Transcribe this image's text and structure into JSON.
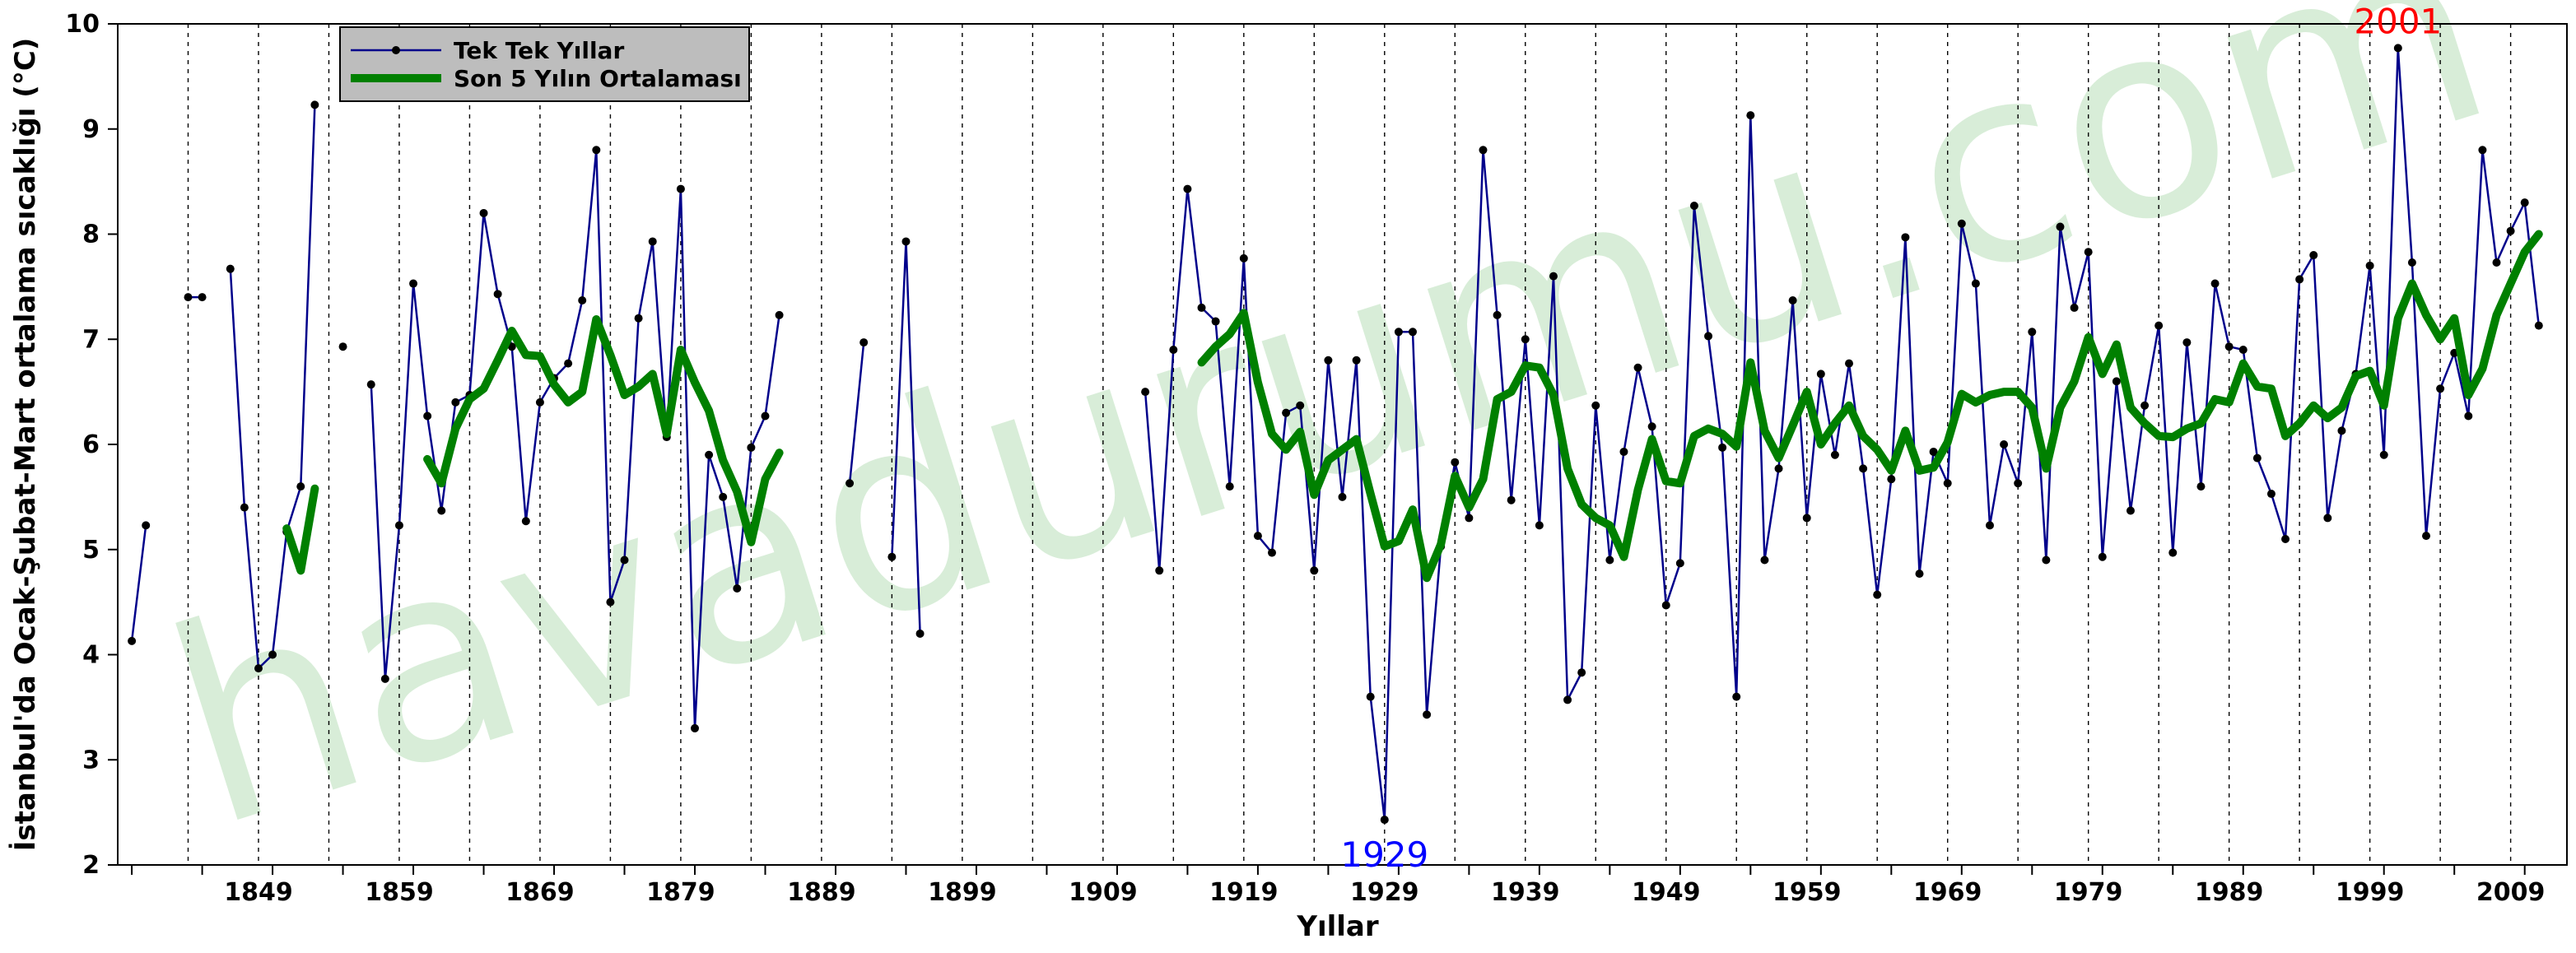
{
  "watermark": "havadurumu.com",
  "chart_data": {
    "type": "line",
    "xlabel": "Yıllar",
    "ylabel": "İstanbul'da Ocak-Şubat-Mart ortalama sıcaklığı (°C)",
    "xlim": [
      1839,
      2013
    ],
    "ylim": [
      2,
      10
    ],
    "xticks": [
      1849,
      1859,
      1869,
      1879,
      1889,
      1899,
      1909,
      1919,
      1929,
      1939,
      1949,
      1959,
      1969,
      1979,
      1989,
      1999,
      2009
    ],
    "yticks": [
      2,
      3,
      4,
      5,
      6,
      7,
      8,
      9,
      10
    ],
    "grid": "vertical dashed at every 5 years",
    "legend_position": "top-left",
    "series": [
      {
        "name": "Tek Tek Yıllar",
        "color": "#00008b",
        "marker": "circle",
        "points": [
          [
            1840,
            4.13
          ],
          [
            1841,
            5.23
          ],
          null,
          [
            1844,
            7.4
          ],
          [
            1845,
            7.4
          ],
          null,
          [
            1847,
            7.67
          ],
          [
            1848,
            5.4
          ],
          [
            1849,
            3.87
          ],
          [
            1850,
            4.0
          ],
          [
            1851,
            5.17
          ],
          [
            1852,
            5.6
          ],
          [
            1853,
            9.23
          ],
          null,
          [
            1855,
            6.93
          ],
          null,
          [
            1857,
            6.57
          ],
          [
            1858,
            3.77
          ],
          [
            1859,
            5.23
          ],
          [
            1860,
            7.53
          ],
          [
            1861,
            6.27
          ],
          [
            1862,
            5.37
          ],
          [
            1863,
            6.4
          ],
          [
            1864,
            6.47
          ],
          [
            1865,
            8.2
          ],
          [
            1866,
            7.43
          ],
          [
            1867,
            6.93
          ],
          [
            1868,
            5.27
          ],
          [
            1869,
            6.4
          ],
          [
            1870,
            6.63
          ],
          [
            1871,
            6.77
          ],
          [
            1872,
            7.37
          ],
          [
            1873,
            8.8
          ],
          [
            1874,
            4.5
          ],
          [
            1875,
            4.9
          ],
          [
            1876,
            7.2
          ],
          [
            1877,
            7.93
          ],
          [
            1878,
            6.07
          ],
          [
            1879,
            8.43
          ],
          [
            1880,
            3.3
          ],
          [
            1881,
            5.9
          ],
          [
            1882,
            5.5
          ],
          [
            1883,
            4.63
          ],
          [
            1884,
            5.97
          ],
          [
            1885,
            6.27
          ],
          [
            1886,
            7.23
          ],
          null,
          [
            1891,
            5.63
          ],
          [
            1892,
            6.97
          ],
          null,
          [
            1894,
            4.93
          ],
          [
            1895,
            7.93
          ],
          [
            1896,
            4.2
          ],
          null,
          [
            1912,
            6.5
          ],
          [
            1913,
            4.8
          ],
          [
            1914,
            6.9
          ],
          [
            1915,
            8.43
          ],
          [
            1916,
            7.3
          ],
          [
            1917,
            7.17
          ],
          [
            1918,
            5.6
          ],
          [
            1919,
            7.77
          ],
          [
            1920,
            5.13
          ],
          [
            1921,
            4.97
          ],
          [
            1922,
            6.3
          ],
          [
            1923,
            6.37
          ],
          [
            1924,
            4.8
          ],
          [
            1925,
            6.8
          ],
          [
            1926,
            5.5
          ],
          [
            1927,
            6.8
          ],
          [
            1928,
            3.6
          ],
          [
            1929,
            2.43
          ],
          [
            1930,
            7.07
          ],
          [
            1931,
            7.07
          ],
          [
            1932,
            3.43
          ],
          [
            1933,
            5.03
          ],
          [
            1934,
            5.83
          ],
          [
            1935,
            5.3
          ],
          [
            1936,
            8.8
          ],
          [
            1937,
            7.23
          ],
          [
            1938,
            5.47
          ],
          [
            1939,
            7.0
          ],
          [
            1940,
            5.23
          ],
          [
            1941,
            7.6
          ],
          [
            1942,
            3.57
          ],
          [
            1943,
            3.83
          ],
          [
            1944,
            6.37
          ],
          [
            1945,
            4.9
          ],
          [
            1946,
            5.93
          ],
          [
            1947,
            6.73
          ],
          [
            1948,
            6.17
          ],
          [
            1949,
            4.47
          ],
          [
            1950,
            4.87
          ],
          [
            1951,
            8.27
          ],
          [
            1952,
            7.03
          ],
          [
            1953,
            5.97
          ],
          [
            1954,
            3.6
          ],
          [
            1955,
            9.13
          ],
          [
            1956,
            4.9
          ],
          [
            1957,
            5.77
          ],
          [
            1958,
            7.37
          ],
          [
            1959,
            5.3
          ],
          [
            1960,
            6.67
          ],
          [
            1961,
            5.9
          ],
          [
            1962,
            6.77
          ],
          [
            1963,
            5.77
          ],
          [
            1964,
            4.57
          ],
          [
            1965,
            5.67
          ],
          [
            1966,
            7.97
          ],
          [
            1967,
            4.77
          ],
          [
            1968,
            5.93
          ],
          [
            1969,
            5.63
          ],
          [
            1970,
            8.1
          ],
          [
            1971,
            7.53
          ],
          [
            1972,
            5.23
          ],
          [
            1973,
            6.0
          ],
          [
            1974,
            5.63
          ],
          [
            1975,
            7.07
          ],
          [
            1976,
            4.9
          ],
          [
            1977,
            8.07
          ],
          [
            1978,
            7.3
          ],
          [
            1979,
            7.83
          ],
          [
            1980,
            4.93
          ],
          [
            1981,
            6.6
          ],
          [
            1982,
            5.37
          ],
          [
            1983,
            6.37
          ],
          [
            1984,
            7.13
          ],
          [
            1985,
            4.97
          ],
          [
            1986,
            6.97
          ],
          [
            1987,
            5.6
          ],
          [
            1988,
            7.53
          ],
          [
            1989,
            6.93
          ],
          [
            1990,
            6.9
          ],
          [
            1991,
            5.87
          ],
          [
            1992,
            5.53
          ],
          [
            1993,
            5.1
          ],
          [
            1994,
            7.57
          ],
          [
            1995,
            7.8
          ],
          [
            1996,
            5.3
          ],
          [
            1997,
            6.13
          ],
          [
            1998,
            6.67
          ],
          [
            1999,
            7.7
          ],
          [
            2000,
            5.9
          ],
          [
            2001,
            9.77
          ],
          [
            2002,
            7.73
          ],
          [
            2003,
            5.13
          ],
          [
            2004,
            6.53
          ],
          [
            2005,
            6.87
          ],
          [
            2006,
            6.27
          ],
          [
            2007,
            8.8
          ],
          [
            2008,
            7.73
          ],
          [
            2009,
            8.03
          ],
          [
            2010,
            8.3
          ],
          [
            2011,
            7.13
          ]
        ]
      },
      {
        "name": "Son 5 Yılın Ortalaması",
        "color": "#008000",
        "marker": "none",
        "points": [
          [
            1851,
            5.2
          ],
          [
            1852,
            4.8
          ],
          [
            1853,
            5.58
          ],
          null,
          [
            1861,
            5.86
          ],
          [
            1862,
            5.63
          ],
          [
            1863,
            6.15
          ],
          [
            1864,
            6.43
          ],
          [
            1865,
            6.53
          ],
          [
            1866,
            6.8
          ],
          [
            1867,
            7.08
          ],
          [
            1868,
            6.85
          ],
          [
            1869,
            6.84
          ],
          [
            1870,
            6.57
          ],
          [
            1871,
            6.4
          ],
          [
            1872,
            6.5
          ],
          [
            1873,
            7.19
          ],
          [
            1874,
            6.85
          ],
          [
            1875,
            6.47
          ],
          [
            1876,
            6.55
          ],
          [
            1877,
            6.67
          ],
          [
            1878,
            6.1
          ],
          [
            1879,
            6.9
          ],
          [
            1880,
            6.59
          ],
          [
            1881,
            6.32
          ],
          [
            1882,
            5.85
          ],
          [
            1883,
            5.55
          ],
          [
            1884,
            5.07
          ],
          [
            1885,
            5.67
          ],
          [
            1886,
            5.92
          ],
          null,
          [
            1916,
            6.78
          ],
          [
            1917,
            6.93
          ],
          [
            1918,
            7.05
          ],
          [
            1919,
            7.25
          ],
          [
            1920,
            6.59
          ],
          [
            1921,
            6.1
          ],
          [
            1922,
            5.95
          ],
          [
            1923,
            6.12
          ],
          [
            1924,
            5.52
          ],
          [
            1925,
            5.85
          ],
          [
            1926,
            5.95
          ],
          [
            1927,
            6.05
          ],
          [
            1928,
            5.53
          ],
          [
            1929,
            5.03
          ],
          [
            1930,
            5.08
          ],
          [
            1931,
            5.38
          ],
          [
            1932,
            4.73
          ],
          [
            1933,
            5.05
          ],
          [
            1934,
            5.7
          ],
          [
            1935,
            5.4
          ],
          [
            1936,
            5.67
          ],
          [
            1937,
            6.43
          ],
          [
            1938,
            6.5
          ],
          [
            1939,
            6.75
          ],
          [
            1940,
            6.73
          ],
          [
            1941,
            6.47
          ],
          [
            1942,
            5.77
          ],
          [
            1943,
            5.43
          ],
          [
            1944,
            5.3
          ],
          [
            1945,
            5.23
          ],
          [
            1946,
            4.93
          ],
          [
            1947,
            5.57
          ],
          [
            1948,
            6.05
          ],
          [
            1949,
            5.65
          ],
          [
            1950,
            5.63
          ],
          [
            1951,
            6.08
          ],
          [
            1952,
            6.15
          ],
          [
            1953,
            6.1
          ],
          [
            1954,
            5.98
          ],
          [
            1955,
            6.78
          ],
          [
            1956,
            6.13
          ],
          [
            1957,
            5.87
          ],
          [
            1958,
            6.18
          ],
          [
            1959,
            6.5
          ],
          [
            1960,
            6.0
          ],
          [
            1961,
            6.2
          ],
          [
            1962,
            6.37
          ],
          [
            1963,
            6.08
          ],
          [
            1964,
            5.95
          ],
          [
            1965,
            5.75
          ],
          [
            1966,
            6.13
          ],
          [
            1967,
            5.75
          ],
          [
            1968,
            5.78
          ],
          [
            1969,
            6.02
          ],
          [
            1970,
            6.48
          ],
          [
            1971,
            6.4
          ],
          [
            1972,
            6.47
          ],
          [
            1973,
            6.5
          ],
          [
            1974,
            6.5
          ],
          [
            1975,
            6.35
          ],
          [
            1976,
            5.77
          ],
          [
            1977,
            6.35
          ],
          [
            1978,
            6.6
          ],
          [
            1979,
            7.02
          ],
          [
            1980,
            6.67
          ],
          [
            1981,
            6.95
          ],
          [
            1982,
            6.35
          ],
          [
            1983,
            6.2
          ],
          [
            1984,
            6.08
          ],
          [
            1985,
            6.07
          ],
          [
            1986,
            6.15
          ],
          [
            1987,
            6.2
          ],
          [
            1988,
            6.43
          ],
          [
            1989,
            6.4
          ],
          [
            1990,
            6.77
          ],
          [
            1991,
            6.55
          ],
          [
            1992,
            6.53
          ],
          [
            1993,
            6.08
          ],
          [
            1994,
            6.2
          ],
          [
            1995,
            6.37
          ],
          [
            1996,
            6.25
          ],
          [
            1997,
            6.35
          ],
          [
            1998,
            6.65
          ],
          [
            1999,
            6.7
          ],
          [
            2000,
            6.37
          ],
          [
            2001,
            7.2
          ],
          [
            2002,
            7.53
          ],
          [
            2003,
            7.23
          ],
          [
            2004,
            7.0
          ],
          [
            2005,
            7.2
          ],
          [
            2006,
            6.47
          ],
          [
            2007,
            6.72
          ],
          [
            2008,
            7.23
          ],
          [
            2009,
            7.53
          ],
          [
            2010,
            7.83
          ],
          [
            2011,
            8.0
          ]
        ]
      }
    ],
    "annotations": [
      {
        "text": "1929",
        "x": 1929,
        "y": 2.43,
        "color": "#0000ff",
        "placement": "below"
      },
      {
        "text": "2001",
        "x": 2001,
        "y": 9.77,
        "color": "#ff0000",
        "placement": "above"
      }
    ]
  }
}
